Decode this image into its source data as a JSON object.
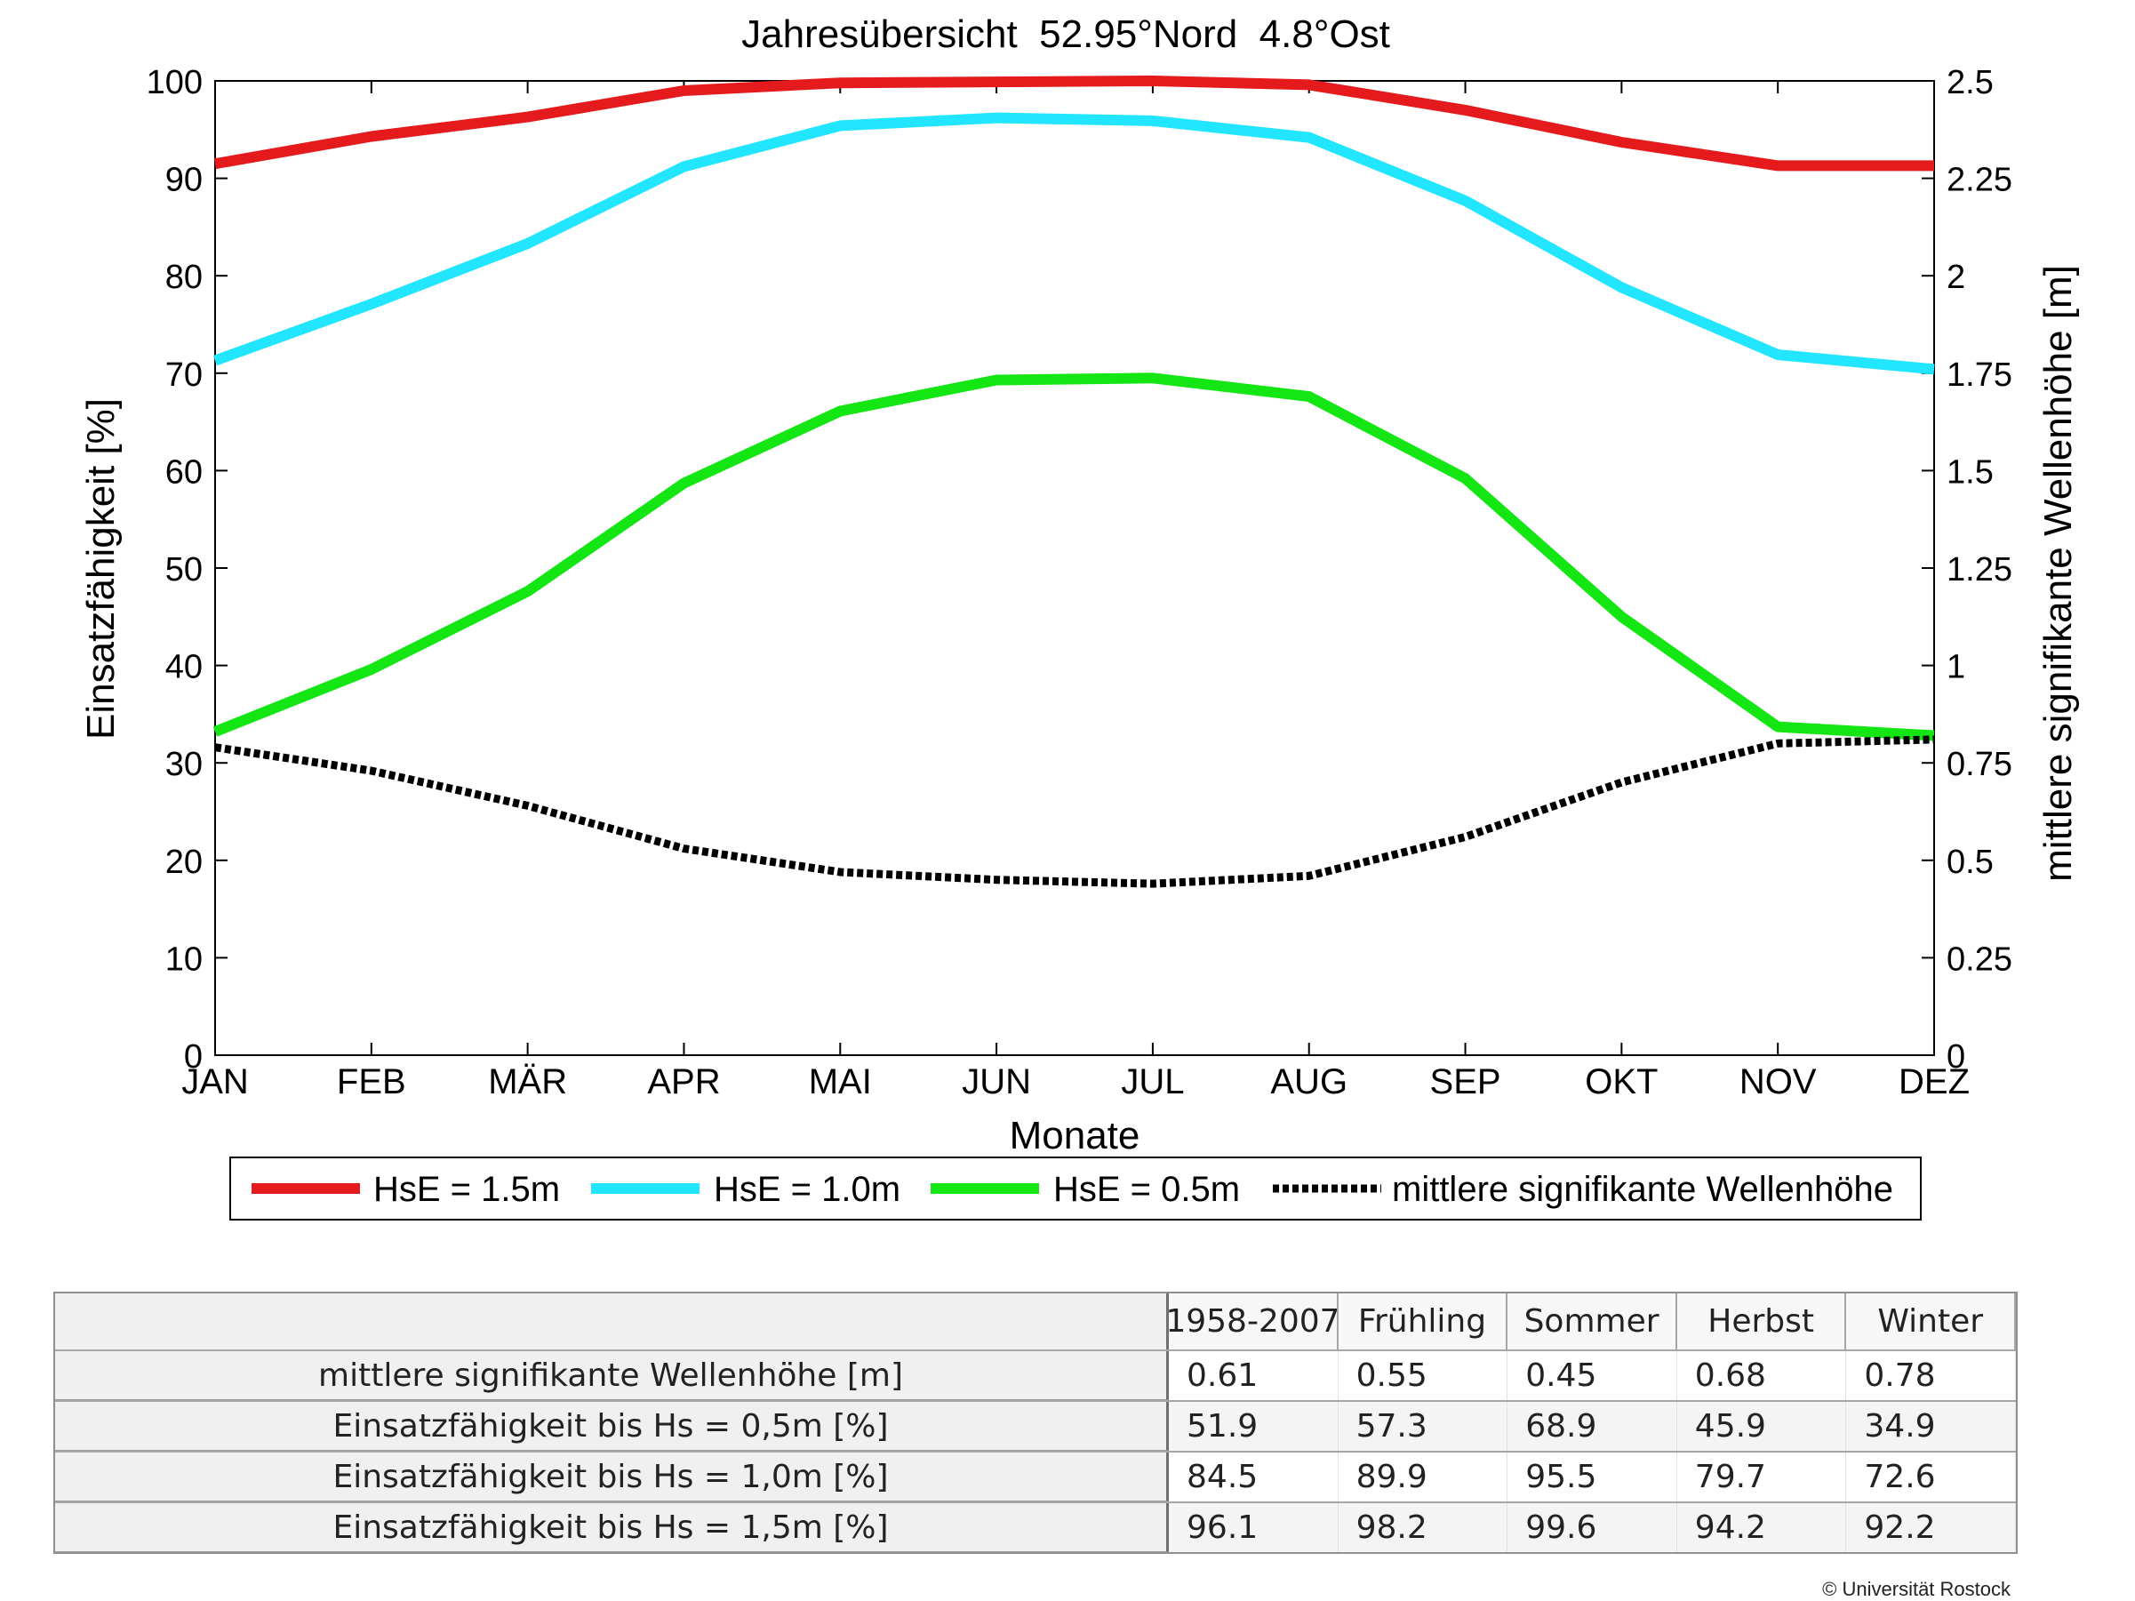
{
  "chart_data": {
    "type": "line",
    "title": "Jahresübersicht  52.95°Nord  4.8°Ost",
    "xlabel": "Monate",
    "ylabel": "Einsatzfähigkeit [%]",
    "y2label": "mittlere signifikante Wellenhöhe [m]",
    "categories": [
      "JAN",
      "FEB",
      "MÄR",
      "APR",
      "MAI",
      "JUN",
      "JUL",
      "AUG",
      "SEP",
      "OKT",
      "NOV",
      "DEZ"
    ],
    "ylim": [
      0,
      100
    ],
    "y2lim": [
      0,
      2.5
    ],
    "yticks": [
      "0",
      "10",
      "20",
      "30",
      "40",
      "50",
      "60",
      "70",
      "80",
      "90",
      "100"
    ],
    "y2ticks": [
      "0",
      "0.25",
      "0.5",
      "0.75",
      "1",
      "1.25",
      "1.5",
      "1.75",
      "2",
      "2.25",
      "2.5"
    ],
    "grid": false,
    "legend_position": "bottom",
    "series": [
      {
        "name": "HsE = 1.5m",
        "axis": "left",
        "color": "#e41a1c",
        "style": "solid",
        "values": [
          91.5,
          94.3,
          96.3,
          99.0,
          99.8,
          99.9,
          100.0,
          99.6,
          97.0,
          93.7,
          91.3,
          91.3
        ]
      },
      {
        "name": "HsE = 1.0m",
        "axis": "left",
        "color": "#22e5ff",
        "style": "solid",
        "values": [
          71.3,
          77.1,
          83.3,
          91.2,
          95.4,
          96.2,
          95.9,
          94.2,
          87.7,
          78.8,
          71.9,
          70.4
        ]
      },
      {
        "name": "HsE = 0.5m",
        "axis": "left",
        "color": "#14e614",
        "style": "solid",
        "values": [
          33.2,
          39.6,
          47.6,
          58.7,
          66.1,
          69.3,
          69.5,
          67.6,
          59.2,
          45.0,
          33.7,
          32.8
        ]
      },
      {
        "name": "mittlere signifikante Wellenhöhe",
        "axis": "right",
        "color": "#000000",
        "style": "dotted",
        "values": [
          0.79,
          0.73,
          0.64,
          0.53,
          0.47,
          0.45,
          0.44,
          0.46,
          0.56,
          0.7,
          0.8,
          0.81
        ]
      }
    ]
  },
  "table": {
    "headers": [
      "",
      "1958-2007",
      "Frühling",
      "Sommer",
      "Herbst",
      "Winter"
    ],
    "rows": [
      {
        "label": "mittlere signifikante Wellenhöhe [m]",
        "values": [
          "0.61",
          "0.55",
          "0.45",
          "0.68",
          "0.78"
        ]
      },
      {
        "label": "Einsatzfähigkeit bis Hs = 0,5m [%]",
        "values": [
          "51.9",
          "57.3",
          "68.9",
          "45.9",
          "34.9"
        ]
      },
      {
        "label": "Einsatzfähigkeit bis Hs = 1,0m [%]",
        "values": [
          "84.5",
          "89.9",
          "95.5",
          "79.7",
          "72.6"
        ]
      },
      {
        "label": "Einsatzfähigkeit bis Hs = 1,5m [%]",
        "values": [
          "96.1",
          "98.2",
          "99.6",
          "94.2",
          "92.2"
        ]
      }
    ]
  },
  "footer": {
    "copyright": "© Universität Rostock"
  }
}
